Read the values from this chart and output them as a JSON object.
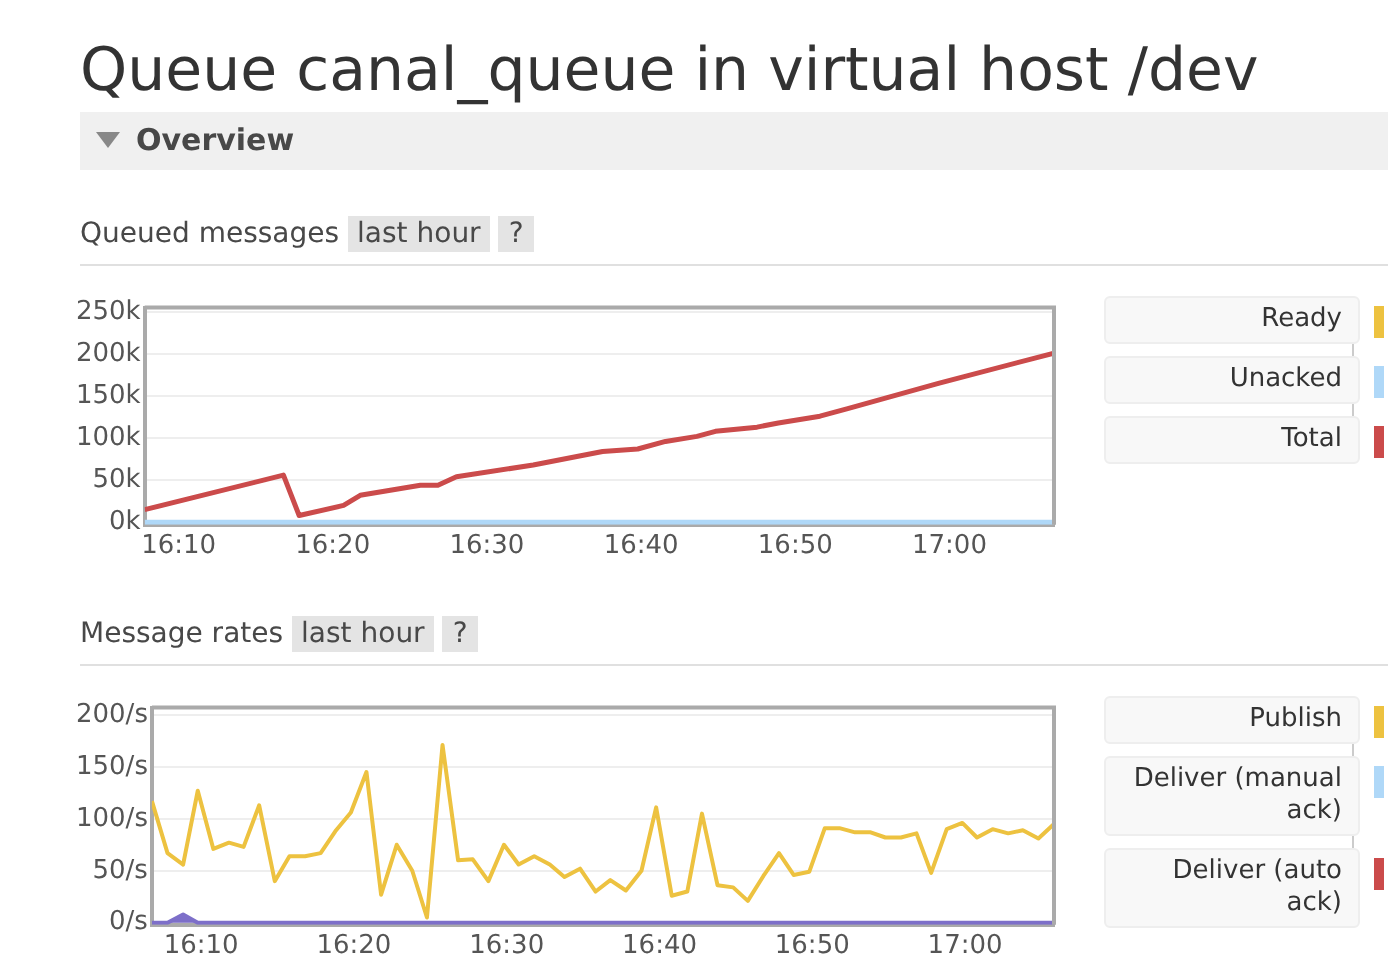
{
  "chart_data": [
    {
      "type": "line",
      "title": "Queued messages",
      "annotations": [
        "Queue canal_queue in virtual host /dev",
        "Overview",
        "last hour",
        "?"
      ],
      "xlim": [
        16.13,
        17.113
      ],
      "xticks": [
        {
          "value": 16.1667,
          "label": "16:10"
        },
        {
          "value": 16.3333,
          "label": "16:20"
        },
        {
          "value": 16.5,
          "label": "16:30"
        },
        {
          "value": 16.6667,
          "label": "16:40"
        },
        {
          "value": 16.8333,
          "label": "16:50"
        },
        {
          "value": 17,
          "label": "17:00"
        }
      ],
      "ylim": [
        -3,
        255
      ],
      "yticks": [
        {
          "value": 0,
          "label": "0k"
        },
        {
          "value": 50,
          "label": "50k"
        },
        {
          "value": 100,
          "label": "100k"
        },
        {
          "value": 150,
          "label": "150k"
        },
        {
          "value": 200,
          "label": "200k"
        },
        {
          "value": 250,
          "label": "250k"
        }
      ],
      "grid": "y",
      "legend": "right",
      "series": [
        {
          "name": "Ready",
          "color": "#edc240"
        },
        {
          "name": "Unacked",
          "color": "#afd8f8",
          "x": [
            16.13,
            17.113
          ],
          "values": [
            0,
            0
          ]
        },
        {
          "name": "Total",
          "color": "#cb4b4b",
          "x": [
            16.13,
            16.28,
            16.297,
            16.345,
            16.363,
            16.428,
            16.447,
            16.467,
            16.55,
            16.625,
            16.663,
            16.693,
            16.727,
            16.747,
            16.792,
            16.815,
            16.86,
            16.89,
            16.988,
            17.113
          ],
          "values": [
            15,
            56,
            8,
            20,
            32,
            44,
            44,
            54,
            68,
            84,
            87,
            96,
            102,
            108,
            113,
            118,
            126,
            135,
            165,
            201
          ]
        }
      ]
    },
    {
      "type": "line",
      "title": "Message rates",
      "annotations": [
        "last hour",
        "?"
      ],
      "xlim": [
        16.113,
        17.097
      ],
      "xticks": [
        {
          "value": 16.1667,
          "label": "16:10"
        },
        {
          "value": 16.3333,
          "label": "16:20"
        },
        {
          "value": 16.5,
          "label": "16:30"
        },
        {
          "value": 16.6667,
          "label": "16:40"
        },
        {
          "value": 16.8333,
          "label": "16:50"
        },
        {
          "value": 17,
          "label": "17:00"
        }
      ],
      "ylim": [
        -2,
        207
      ],
      "yticks": [
        {
          "value": 0,
          "label": "0/s"
        },
        {
          "value": 50,
          "label": "50/s"
        },
        {
          "value": 100,
          "label": "100/s"
        },
        {
          "value": 150,
          "label": "150/s"
        },
        {
          "value": 200,
          "label": "200/s"
        }
      ],
      "grid": "y",
      "legend": "right",
      "series": [
        {
          "name": "Publish",
          "color": "#edc240",
          "x": [
            16.113,
            16.13,
            16.147,
            16.163,
            16.18,
            16.197,
            16.213,
            16.23,
            16.247,
            16.263,
            16.28,
            16.297,
            16.313,
            16.33,
            16.347,
            16.363,
            16.38,
            16.397,
            16.413,
            16.43,
            16.447,
            16.463,
            16.48,
            16.497,
            16.513,
            16.53,
            16.547,
            16.563,
            16.58,
            16.597,
            16.613,
            16.63,
            16.647,
            16.663,
            16.68,
            16.697,
            16.713,
            16.73,
            16.747,
            16.763,
            16.78,
            16.797,
            16.813,
            16.83,
            16.847,
            16.863,
            16.88,
            16.897,
            16.913,
            16.93,
            16.947,
            16.963,
            16.98,
            16.997,
            17.013,
            17.03,
            17.047,
            17.063,
            17.08,
            17.097
          ],
          "values": [
            117,
            67,
            56,
            127,
            71,
            77,
            73,
            113,
            40,
            64,
            64,
            67,
            88,
            106,
            145,
            27,
            75,
            50,
            5,
            171,
            60,
            61,
            40,
            75,
            56,
            64,
            56,
            44,
            52,
            30,
            41,
            31,
            50,
            111,
            26,
            30,
            105,
            36,
            34,
            21,
            45,
            67,
            46,
            49,
            91,
            91,
            87,
            87,
            82,
            82,
            86,
            48,
            90,
            96,
            82,
            90,
            86,
            89,
            81,
            95
          ]
        },
        {
          "name": "Deliver (manual ack)",
          "color": "#afd8f8"
        },
        {
          "name": "Deliver (auto ack)",
          "color": "#cb4b4b"
        },
        {
          "type": "area",
          "color": "#7d6fc9",
          "x": [
            16.113,
            16.13,
            16.147,
            16.163,
            17.097
          ],
          "values": [
            0,
            0,
            8,
            0,
            0
          ]
        }
      ]
    }
  ]
}
